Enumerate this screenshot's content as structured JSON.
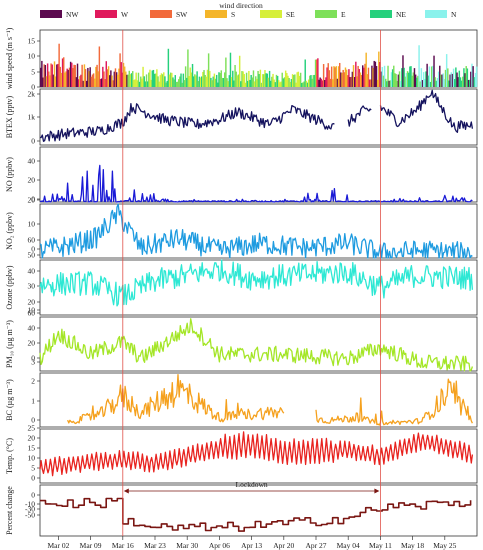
{
  "legend": {
    "title": "wind direction",
    "items": [
      {
        "label": "NW",
        "color": "#5c0a4f"
      },
      {
        "label": "W",
        "color": "#e0195c"
      },
      {
        "label": "SW",
        "color": "#f26a3b"
      },
      {
        "label": "S",
        "color": "#f4b52a"
      },
      {
        "label": "SE",
        "color": "#d6ef3a"
      },
      {
        "label": "E",
        "color": "#7ee05a"
      },
      {
        "label": "NE",
        "color": "#25d07c"
      },
      {
        "label": "N",
        "color": "#8af2ec"
      }
    ]
  },
  "x_ticks": [
    "Mar 02",
    "Mar 09",
    "Mar 16",
    "Mar 23",
    "Mar 30",
    "Apr 06",
    "Apr 13",
    "Apr 20",
    "Apr 27",
    "May 04",
    "May 11",
    "May 18",
    "May 25"
  ],
  "annotation": {
    "label": "Lockdown",
    "start": "Mar 16",
    "end": "May 11"
  },
  "reference_lines": [
    "Mar 16",
    "May 11"
  ],
  "chart_data": [
    {
      "type": "bar",
      "ylabel": "wind speed (m s⁻¹)",
      "yticks": [
        "0",
        "5",
        "10",
        "15"
      ],
      "ylim": [
        0,
        17
      ],
      "color": "multi",
      "series": [
        {
          "direction": "W/SW",
          "period": "Feb 26 - Mar 16",
          "typical": 6,
          "max": 16
        },
        {
          "direction": "E/NE",
          "period": "Mar 16 - Apr 27",
          "typical": 4,
          "max": 12
        },
        {
          "direction": "SW/S",
          "period": "Apr 27 - May 11",
          "typical": 6,
          "max": 14
        },
        {
          "direction": "NE/N/E",
          "period": "May 11 - May 31",
          "typical": 5,
          "max": 13
        }
      ]
    },
    {
      "type": "line",
      "ylabel": "BTEX (pptv)",
      "yticks": [
        "0",
        "1k",
        "2k"
      ],
      "ylim": [
        0,
        2200
      ],
      "color": "#15135e",
      "x": [
        "Feb 26",
        "Mar 04",
        "Mar 11",
        "Mar 16",
        "Mar 18",
        "Mar 25",
        "Apr 01",
        "Apr 06",
        "Apr 10",
        "Apr 17",
        "Apr 22",
        "Apr 27",
        "May 02",
        "May 07",
        "May 11",
        "May 15",
        "May 19",
        "May 22",
        "May 27",
        "May 31"
      ],
      "values": [
        300,
        450,
        550,
        900,
        1500,
        1000,
        800,
        1000,
        1300,
        800,
        1400,
        1000,
        600,
        1300,
        1500,
        900,
        1400,
        2100,
        700,
        800
      ]
    },
    {
      "type": "line",
      "ylabel": "NO (ppbv)",
      "yticks": [
        "0",
        "20",
        "40"
      ],
      "ylim": [
        0,
        60
      ],
      "color": "#1a1ad6",
      "x": [
        "Feb 26",
        "Mar 02",
        "Mar 08",
        "Mar 12",
        "Mar 16",
        "Mar 25",
        "Apr 06",
        "Apr 17",
        "May 01",
        "May 06",
        "May 11",
        "May 25",
        "May 31"
      ],
      "values": [
        3,
        20,
        35,
        50,
        20,
        6,
        4,
        4,
        15,
        25,
        3,
        8,
        3
      ]
    },
    {
      "type": "line",
      "ylabel": "NO₂ (ppbv)",
      "yticks": [
        "0",
        "10",
        "20"
      ],
      "ylim": [
        0,
        22
      ],
      "color": "#1e9be0",
      "x": [
        "Feb 26",
        "Mar 04",
        "Mar 10",
        "Mar 15",
        "Mar 20",
        "Mar 28",
        "Apr 06",
        "Apr 15",
        "Apr 25",
        "May 04",
        "May 11",
        "May 20",
        "May 31"
      ],
      "values": [
        3,
        5,
        8,
        18,
        4,
        8,
        3,
        6,
        4,
        6,
        2,
        3,
        2
      ]
    },
    {
      "type": "line",
      "ylabel": "Ozone (ppbv)",
      "yticks": [
        "10",
        "20",
        "30",
        "40",
        "50",
        "60"
      ],
      "ylim": [
        5,
        65
      ],
      "color": "#2ee8d4",
      "x": [
        "Feb 26",
        "Mar 09",
        "Mar 16",
        "Mar 23",
        "Apr 06",
        "Apr 13",
        "Apr 27",
        "May 04",
        "May 11",
        "May 18",
        "May 31"
      ],
      "values": [
        38,
        40,
        25,
        42,
        55,
        45,
        50,
        52,
        35,
        48,
        45
      ]
    },
    {
      "type": "line",
      "ylabel": "PM₁₀ (µg m⁻³)",
      "yticks": [
        "0",
        "20",
        "40",
        "60"
      ],
      "ylim": [
        0,
        65
      ],
      "color": "#a4e627",
      "x": [
        "Feb 26",
        "Mar 02",
        "Mar 09",
        "Mar 16",
        "Mar 20",
        "Mar 31",
        "Apr 06",
        "Apr 20",
        "May 04",
        "May 11",
        "May 20",
        "May 31"
      ],
      "values": [
        15,
        45,
        20,
        35,
        15,
        55,
        20,
        20,
        15,
        28,
        10,
        8
      ]
    },
    {
      "type": "line",
      "ylabel": "BC (µg m⁻³)",
      "yticks": [
        "0",
        "1",
        "2",
        "3"
      ],
      "ylim": [
        0,
        3.3
      ],
      "color": "#f5a11e",
      "x": [
        "Mar 04",
        "Mar 11",
        "Mar 16",
        "Mar 20",
        "Mar 28",
        "Apr 06",
        "Apr 15",
        "Apr 22",
        "Apr 29",
        "May 06",
        "May 11",
        "May 20",
        "May 26",
        "May 31"
      ],
      "values": [
        0.3,
        0.8,
        2.0,
        0.9,
        2.5,
        0.6,
        0.9,
        1.0,
        0.4,
        0.6,
        0.2,
        0.4,
        2.2,
        0.3
      ]
    },
    {
      "type": "line",
      "ylabel": "Temp. (°C)",
      "yticks": [
        "0",
        "5",
        "10",
        "15",
        "20",
        "25"
      ],
      "ylim": [
        0,
        28
      ],
      "color": "#e8231f",
      "x": [
        "Feb 26",
        "Mar 09",
        "Mar 16",
        "Mar 23",
        "Apr 06",
        "Apr 13",
        "Apr 20",
        "May 04",
        "May 11",
        "May 20",
        "May 31"
      ],
      "values": [
        8,
        11,
        12,
        10,
        18,
        20,
        16,
        17,
        14,
        22,
        15
      ]
    },
    {
      "type": "line",
      "ylabel": "Percent change",
      "yticks": [
        "-50",
        "-30",
        "-10",
        "0"
      ],
      "ylim": [
        -80,
        45
      ],
      "color": "#7a1612",
      "x": [
        "Feb 26",
        "Mar 09",
        "Mar 15",
        "Mar 16",
        "Mar 23",
        "Apr 06",
        "Apr 20",
        "May 04",
        "May 11",
        "May 20",
        "May 31"
      ],
      "values": [
        0,
        0,
        5,
        -40,
        -60,
        -60,
        -50,
        -35,
        -10,
        -5,
        5
      ]
    }
  ]
}
